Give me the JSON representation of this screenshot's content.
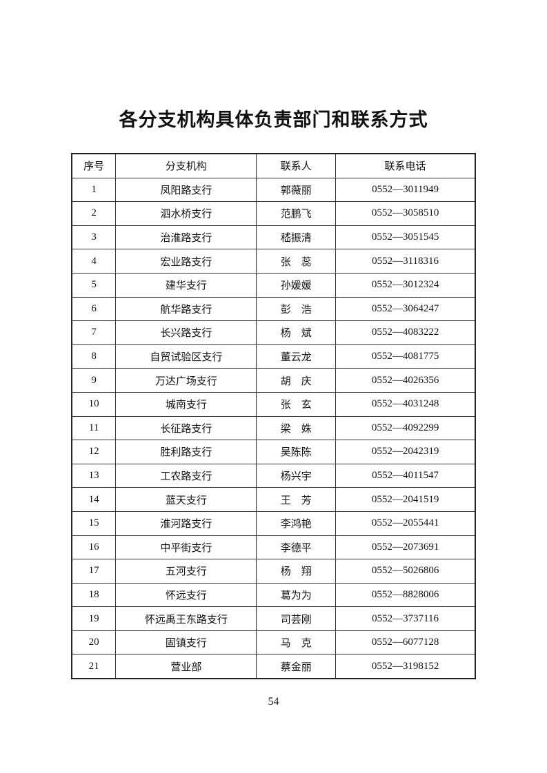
{
  "title": "各分支机构具体负责部门和联系方式",
  "table": {
    "headers": [
      "序号",
      "分支机构",
      "联系人",
      "联系电话"
    ],
    "rows": [
      [
        "1",
        "凤阳路支行",
        "郭薇丽",
        "0552—3011949"
      ],
      [
        "2",
        "泗水桥支行",
        "范鹏飞",
        "0552—3058510"
      ],
      [
        "3",
        "治淮路支行",
        "嵇振清",
        "0552—3051545"
      ],
      [
        "4",
        "宏业路支行",
        "张　蕊",
        "0552—3118316"
      ],
      [
        "5",
        "建华支行",
        "孙媛媛",
        "0552—3012324"
      ],
      [
        "6",
        "航华路支行",
        "彭　浩",
        "0552—3064247"
      ],
      [
        "7",
        "长兴路支行",
        "杨　斌",
        "0552—4083222"
      ],
      [
        "8",
        "自贸试验区支行",
        "董云龙",
        "0552—4081775"
      ],
      [
        "9",
        "万达广场支行",
        "胡　庆",
        "0552—4026356"
      ],
      [
        "10",
        "城南支行",
        "张　玄",
        "0552—4031248"
      ],
      [
        "11",
        "长征路支行",
        "梁　姝",
        "0552—4092299"
      ],
      [
        "12",
        "胜利路支行",
        "吴陈陈",
        "0552—2042319"
      ],
      [
        "13",
        "工农路支行",
        "杨兴宇",
        "0552—4011547"
      ],
      [
        "14",
        "蓝天支行",
        "王　芳",
        "0552—2041519"
      ],
      [
        "15",
        "淮河路支行",
        "李鸿艳",
        "0552—2055441"
      ],
      [
        "16",
        "中平街支行",
        "李德平",
        "0552—2073691"
      ],
      [
        "17",
        "五河支行",
        "杨　翔",
        "0552—5026806"
      ],
      [
        "18",
        "怀远支行",
        "葛为为",
        "0552—8828006"
      ],
      [
        "19",
        "怀远禹王东路支行",
        "司芸刚",
        "0552—3737116"
      ],
      [
        "20",
        "固镇支行",
        "马　克",
        "0552—6077128"
      ],
      [
        "21",
        "营业部",
        "蔡金丽",
        "0552—3198152"
      ]
    ]
  },
  "page_number": "54"
}
